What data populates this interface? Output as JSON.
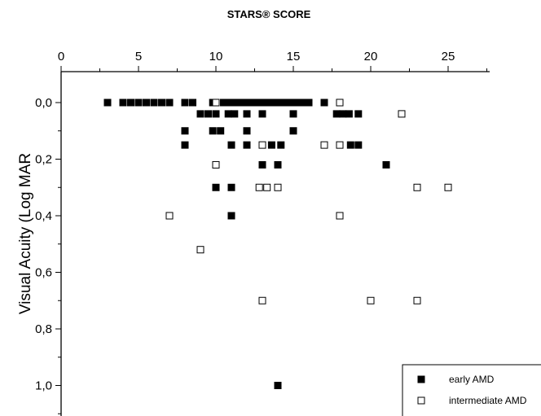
{
  "chart_data": {
    "type": "scatter",
    "title": "STARS® SCORE",
    "xlabel": "",
    "ylabel": "Visual Acuity (Log MAR",
    "x_axis_position": "top",
    "y_axis_inverted": true,
    "xlim": [
      0,
      27.5
    ],
    "ylim": [
      0,
      1.1
    ],
    "x_ticks": [
      0,
      5,
      10,
      15,
      20,
      25
    ],
    "x_tick_labels": [
      "0",
      "5",
      "10",
      "15",
      "20",
      "25"
    ],
    "y_ticks": [
      0,
      0.2,
      0.4,
      0.6,
      0.8,
      1.0
    ],
    "y_tick_labels": [
      "0,0",
      "0,2",
      "0,4",
      "0,6",
      "0,8",
      "1,0"
    ],
    "legend_position": "bottom-right",
    "grid": false,
    "series": [
      {
        "name": "early AMD",
        "marker": "filled-square",
        "color": "#000000",
        "points": [
          [
            3,
            0
          ],
          [
            4,
            0
          ],
          [
            4.5,
            0
          ],
          [
            5,
            0
          ],
          [
            5.5,
            0
          ],
          [
            6,
            0
          ],
          [
            6.5,
            0
          ],
          [
            7,
            0
          ],
          [
            8,
            0
          ],
          [
            8.5,
            0
          ],
          [
            9.8,
            0
          ],
          [
            10.5,
            0
          ],
          [
            10.8,
            0
          ],
          [
            11,
            0
          ],
          [
            11.3,
            0
          ],
          [
            11.6,
            0
          ],
          [
            12,
            0
          ],
          [
            12.3,
            0
          ],
          [
            12.6,
            0
          ],
          [
            13,
            0
          ],
          [
            13.3,
            0
          ],
          [
            13.6,
            0
          ],
          [
            14,
            0
          ],
          [
            14.4,
            0
          ],
          [
            14.8,
            0
          ],
          [
            15.2,
            0
          ],
          [
            15.6,
            0
          ],
          [
            16,
            0
          ],
          [
            17,
            0
          ],
          [
            9,
            0.04
          ],
          [
            9.5,
            0.04
          ],
          [
            10,
            0.04
          ],
          [
            10.8,
            0.04
          ],
          [
            11.2,
            0.04
          ],
          [
            12,
            0.04
          ],
          [
            13,
            0.04
          ],
          [
            15,
            0.04
          ],
          [
            17.8,
            0.04
          ],
          [
            18.2,
            0.04
          ],
          [
            18.6,
            0.04
          ],
          [
            19.2,
            0.04
          ],
          [
            8,
            0.1
          ],
          [
            9.8,
            0.1
          ],
          [
            10.3,
            0.1
          ],
          [
            12,
            0.1
          ],
          [
            15,
            0.1
          ],
          [
            8,
            0.15
          ],
          [
            11,
            0.15
          ],
          [
            12,
            0.15
          ],
          [
            13.6,
            0.15
          ],
          [
            14.2,
            0.15
          ],
          [
            18.7,
            0.15
          ],
          [
            19.2,
            0.15
          ],
          [
            13,
            0.22
          ],
          [
            14,
            0.22
          ],
          [
            21,
            0.22
          ],
          [
            10,
            0.3
          ],
          [
            11,
            0.3
          ],
          [
            11,
            0.4
          ],
          [
            14,
            1.0
          ]
        ]
      },
      {
        "name": "intermediate AMD",
        "marker": "open-square",
        "color": "#000000",
        "points": [
          [
            10,
            0
          ],
          [
            18,
            0
          ],
          [
            22,
            0.04
          ],
          [
            13,
            0.15
          ],
          [
            17,
            0.15
          ],
          [
            18,
            0.15
          ],
          [
            10,
            0.22
          ],
          [
            12.8,
            0.3
          ],
          [
            13.3,
            0.3
          ],
          [
            14,
            0.3
          ],
          [
            23,
            0.3
          ],
          [
            25,
            0.3
          ],
          [
            7,
            0.4
          ],
          [
            18,
            0.4
          ],
          [
            9,
            0.52
          ],
          [
            13,
            0.7
          ],
          [
            20,
            0.7
          ],
          [
            23,
            0.7
          ]
        ]
      }
    ]
  }
}
